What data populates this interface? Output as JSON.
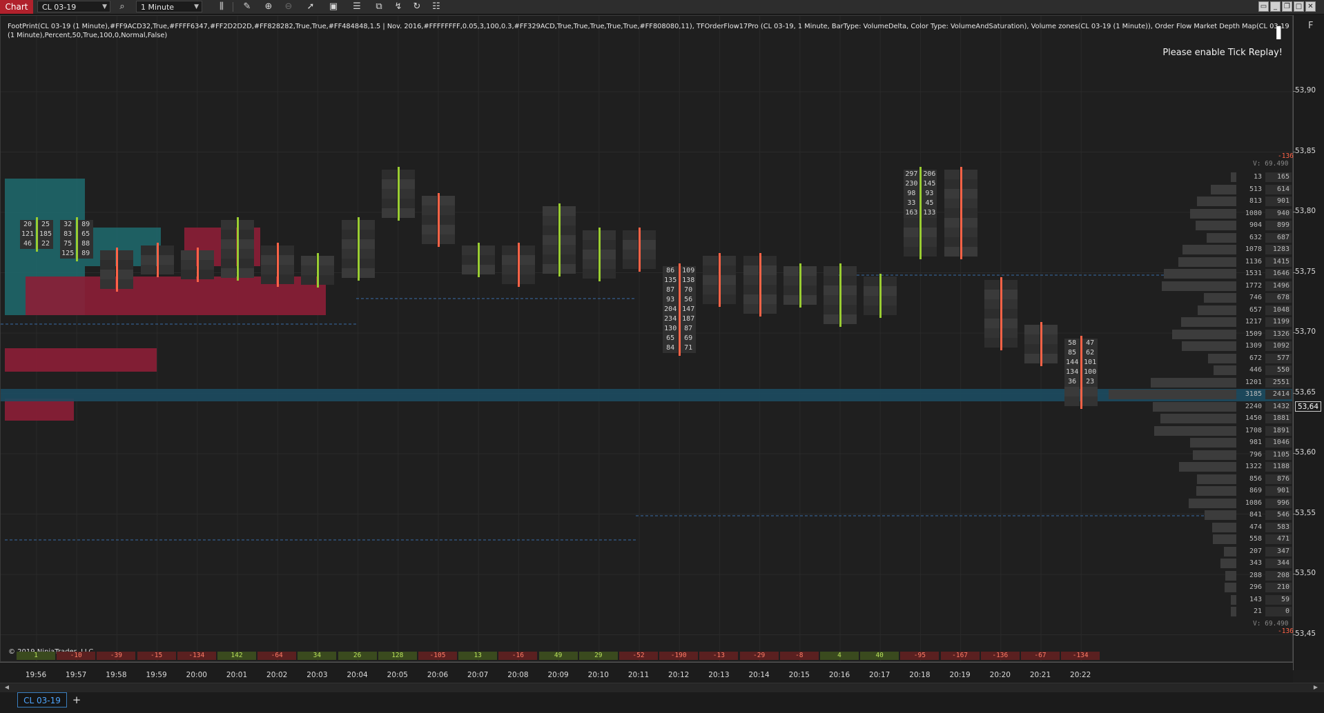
{
  "toolbar": {
    "chart_tab": "Chart",
    "instrument": "CL 03-19",
    "interval": "1 Minute",
    "tools": [
      "search-icon",
      "bars-icon",
      "pencil-icon",
      "zoom-in-icon",
      "zoom-out-icon",
      "pointer-icon",
      "data-box-icon",
      "order-icon",
      "strategy-icon",
      "indicator-icon",
      "reload-icon",
      "properties-icon"
    ]
  },
  "indicator_text": "FootPrint(CL 03-19 (1 Minute),#FF9ACD32,True,#FFFF6347,#FF2D2D2D,#FF828282,True,True,#FF484848,1.5 | Nov. 2016,#FFFFFFFF,0.05,3,100,0.3,#FF329ACD,True,True,True,True,True,#FF808080,11), TFOrderFlow17Pro (CL 03-19, 1 Minute, BarType: VolumeDelta, Color Type: VolumeAndSaturation), Volume zones(CL 03-19 (1 Minute)), Order Flow Market Depth Map(CL 03-19 (1 Minute),Percent,50,True,100,0,Normal,False)",
  "replay_message": "Please enable Tick Replay!",
  "copyright": "© 2019 NinjaTrader, LLC",
  "right_panel_label": "F",
  "price_axis": {
    "ticks": [
      "53,90",
      "53,85",
      "53,80",
      "53,75",
      "53,70",
      "53,65",
      "53,60",
      "53,55",
      "53,50",
      "53,45"
    ],
    "current_price": "53,64",
    "volume_top": "V: 69.490",
    "volume_bottom": "V: 69.490",
    "delta_top": "-136",
    "delta_bottom": "-136"
  },
  "time_axis": {
    "ticks": [
      "19:56",
      "19:57",
      "19:58",
      "19:59",
      "20:00",
      "20:01",
      "20:02",
      "20:03",
      "20:04",
      "20:05",
      "20:06",
      "20:07",
      "20:08",
      "20:09",
      "20:10",
      "20:11",
      "20:12",
      "20:13",
      "20:14",
      "20:15",
      "20:16",
      "20:17",
      "20:18",
      "20:19",
      "20:20",
      "20:21",
      "20:22"
    ]
  },
  "bar_deltas": [
    "1",
    "-10",
    "-39",
    "-15",
    "-134",
    "142",
    "-64",
    "34",
    "26",
    "128",
    "-105",
    "13",
    "-16",
    "49",
    "29",
    "-52",
    "-190",
    "-13",
    "-29",
    "-8",
    "4",
    "40",
    "-95",
    "-167",
    "-136",
    "-67",
    "-134"
  ],
  "footprint_samples": {
    "1956": [
      [
        "20",
        "25"
      ],
      [
        "121",
        "185"
      ],
      [
        "46",
        "22"
      ]
    ],
    "1957": [
      [
        "32",
        "89"
      ],
      [
        "83",
        "65"
      ],
      [
        "75",
        "88"
      ],
      [
        "125",
        "89"
      ]
    ],
    "2012": [
      [
        "86",
        "109"
      ],
      [
        "135",
        "138"
      ],
      [
        "87",
        "70"
      ],
      [
        "93",
        "56"
      ],
      [
        "204",
        "147"
      ],
      [
        "234",
        "187"
      ],
      [
        "130",
        "87"
      ],
      [
        "65",
        "69"
      ],
      [
        "84",
        "71"
      ]
    ],
    "2018": [
      [
        "297",
        "206"
      ],
      [
        "230",
        "145"
      ],
      [
        "98",
        "93"
      ],
      [
        "33",
        "45"
      ],
      [
        "163",
        "133"
      ]
    ],
    "2022": [
      [
        "58",
        "47"
      ],
      [
        "85",
        "62"
      ],
      [
        "144",
        "101"
      ],
      [
        "134",
        "100"
      ],
      [
        "36",
        "23"
      ]
    ]
  },
  "volume_profile": [
    [
      "13",
      "165"
    ],
    [
      "513",
      "614"
    ],
    [
      "813",
      "901"
    ],
    [
      "1080",
      "940"
    ],
    [
      "904",
      "899"
    ],
    [
      "632",
      "687"
    ],
    [
      "1078",
      "1283"
    ],
    [
      "1136",
      "1415"
    ],
    [
      "1531",
      "1646"
    ],
    [
      "1772",
      "1496"
    ],
    [
      "746",
      "678"
    ],
    [
      "657",
      "1048"
    ],
    [
      "1217",
      "1199"
    ],
    [
      "1509",
      "1326"
    ],
    [
      "1309",
      "1092"
    ],
    [
      "672",
      "577"
    ],
    [
      "446",
      "550"
    ],
    [
      "1201",
      "2551"
    ],
    [
      "3185",
      "2414"
    ],
    [
      "2240",
      "1432"
    ],
    [
      "1450",
      "1881"
    ],
    [
      "1708",
      "1891"
    ],
    [
      "981",
      "1046"
    ],
    [
      "796",
      "1105"
    ],
    [
      "1322",
      "1188"
    ],
    [
      "856",
      "876"
    ],
    [
      "869",
      "901"
    ],
    [
      "1086",
      "996"
    ],
    [
      "841",
      "546"
    ],
    [
      "474",
      "583"
    ],
    [
      "558",
      "471"
    ],
    [
      "207",
      "347"
    ],
    [
      "343",
      "344"
    ],
    [
      "288",
      "208"
    ],
    [
      "296",
      "210"
    ],
    [
      "143",
      "59"
    ],
    [
      "21",
      "0"
    ]
  ],
  "bottom_tab": "CL 03-19",
  "colors": {
    "accent": "#b0212c",
    "up": "#9acd32",
    "down": "#ff6347",
    "highlight": "#329acd"
  }
}
